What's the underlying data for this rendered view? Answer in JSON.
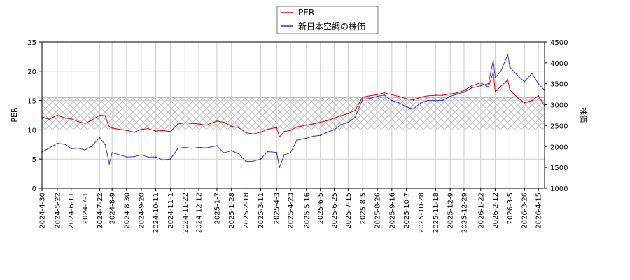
{
  "chart_data": {
    "type": "line",
    "title": "",
    "y_left_label": "PER",
    "y_right_label": "株価",
    "y_left_range": [
      0,
      25
    ],
    "y_left_ticks": [
      0,
      5,
      10,
      15,
      20,
      25
    ],
    "y_right_range": [
      1000,
      4500
    ],
    "y_right_ticks": [
      1000,
      1500,
      2000,
      2500,
      3000,
      3500,
      4000,
      4500
    ],
    "x_range": [
      "2024-04-30",
      "2026-04-24"
    ],
    "x_ticks": [
      "2024-4-30",
      "2024-5-22",
      "2024-6-11",
      "2024-7-1",
      "2024-7-22",
      "2024-8-9",
      "2024-8-30",
      "2024-9-20",
      "2024-10-11",
      "2024-11-1",
      "2024-11-22",
      "2024-12-12",
      "2025-1-7",
      "2025-1-28",
      "2025-2-18",
      "2025-3-11",
      "2025-4-3",
      "2025-4-23",
      "2025-5-16",
      "2025-6-5",
      "2025-6-25",
      "2025-7-15",
      "2025-8-5",
      "2025-8-26",
      "2025-9-16",
      "2025-10-7",
      "2025-10-28",
      "2025-11-18",
      "2025-12-9",
      "2025-12-29",
      "2026-1-22",
      "2026-2-12",
      "2026-3-5",
      "2026-3-26",
      "2026-4-15"
    ],
    "grid": true,
    "legend_position": "top-center",
    "band": {
      "axis": "left",
      "from": 10,
      "to": 15.5,
      "pattern": "crosshatch"
    },
    "series": [
      {
        "name": "PER",
        "axis": "left",
        "color": "#dd0000",
        "x": [
          "2024-04-30",
          "2024-05-10",
          "2024-05-22",
          "2024-06-03",
          "2024-06-11",
          "2024-06-21",
          "2024-07-01",
          "2024-07-10",
          "2024-07-22",
          "2024-07-30",
          "2024-08-05",
          "2024-08-09",
          "2024-08-20",
          "2024-08-30",
          "2024-09-10",
          "2024-09-20",
          "2024-09-30",
          "2024-10-11",
          "2024-10-21",
          "2024-11-01",
          "2024-11-12",
          "2024-11-22",
          "2024-12-02",
          "2024-12-12",
          "2024-12-23",
          "2025-01-07",
          "2025-01-17",
          "2025-01-28",
          "2025-02-07",
          "2025-02-18",
          "2025-02-28",
          "2025-03-11",
          "2025-03-21",
          "2025-04-03",
          "2025-04-07",
          "2025-04-14",
          "2025-04-23",
          "2025-05-02",
          "2025-05-16",
          "2025-05-26",
          "2025-06-05",
          "2025-06-16",
          "2025-06-25",
          "2025-07-04",
          "2025-07-15",
          "2025-07-25",
          "2025-08-05",
          "2025-08-15",
          "2025-08-26",
          "2025-09-05",
          "2025-09-16",
          "2025-09-26",
          "2025-10-07",
          "2025-10-17",
          "2025-10-28",
          "2025-11-07",
          "2025-11-18",
          "2025-11-28",
          "2025-12-09",
          "2025-12-19",
          "2025-12-29",
          "2026-01-09",
          "2026-01-22",
          "2026-02-02",
          "2026-02-09",
          "2026-02-12",
          "2026-02-20",
          "2026-03-02",
          "2026-03-05",
          "2026-03-16",
          "2026-03-26",
          "2026-04-06",
          "2026-04-15",
          "2026-04-24"
        ],
        "y": [
          12.2,
          11.8,
          12.5,
          12.0,
          11.9,
          11.4,
          11.1,
          11.6,
          12.5,
          12.4,
          10.5,
          10.3,
          10.1,
          9.9,
          9.6,
          10.1,
          10.2,
          9.8,
          9.9,
          9.7,
          11.0,
          11.2,
          11.1,
          11.0,
          10.8,
          11.5,
          11.3,
          10.6,
          10.4,
          9.5,
          9.3,
          9.6,
          10.1,
          10.4,
          8.8,
          9.7,
          9.9,
          10.5,
          10.8,
          11.0,
          11.3,
          11.6,
          12.0,
          12.4,
          12.8,
          13.3,
          15.6,
          15.8,
          16.0,
          16.3,
          16.0,
          15.7,
          15.3,
          15.1,
          15.6,
          15.8,
          15.9,
          15.9,
          16.1,
          16.3,
          16.7,
          17.5,
          18.0,
          17.3,
          19.8,
          16.5,
          17.4,
          18.5,
          16.8,
          15.5,
          14.6,
          15.0,
          15.8,
          14.1
        ]
      },
      {
        "name": "新日本空調の株価",
        "axis": "right",
        "color": "#3333cc",
        "x": [
          "2024-04-30",
          "2024-05-10",
          "2024-05-22",
          "2024-06-03",
          "2024-06-11",
          "2024-06-21",
          "2024-07-01",
          "2024-07-10",
          "2024-07-22",
          "2024-07-30",
          "2024-08-05",
          "2024-08-09",
          "2024-08-20",
          "2024-08-30",
          "2024-09-10",
          "2024-09-20",
          "2024-09-30",
          "2024-10-11",
          "2024-10-21",
          "2024-11-01",
          "2024-11-12",
          "2024-11-22",
          "2024-12-02",
          "2024-12-12",
          "2024-12-23",
          "2025-01-07",
          "2025-01-17",
          "2025-01-28",
          "2025-02-07",
          "2025-02-18",
          "2025-02-28",
          "2025-03-11",
          "2025-03-21",
          "2025-04-03",
          "2025-04-07",
          "2025-04-14",
          "2025-04-23",
          "2025-05-02",
          "2025-05-16",
          "2025-05-26",
          "2025-06-05",
          "2025-06-16",
          "2025-06-25",
          "2025-07-04",
          "2025-07-15",
          "2025-07-25",
          "2025-08-05",
          "2025-08-15",
          "2025-08-26",
          "2025-09-05",
          "2025-09-16",
          "2025-09-26",
          "2025-10-07",
          "2025-10-17",
          "2025-10-28",
          "2025-11-07",
          "2025-11-18",
          "2025-11-28",
          "2025-12-09",
          "2025-12-19",
          "2025-12-29",
          "2026-01-09",
          "2026-01-22",
          "2026-02-02",
          "2026-02-09",
          "2026-02-12",
          "2026-02-20",
          "2026-03-02",
          "2026-03-05",
          "2026-03-16",
          "2026-03-26",
          "2026-04-06",
          "2026-04-15",
          "2026-04-24"
        ],
        "y": [
          1870,
          1960,
          2080,
          2050,
          1950,
          1960,
          1920,
          2000,
          2210,
          2050,
          1590,
          1850,
          1800,
          1750,
          1760,
          1800,
          1750,
          1750,
          1680,
          1700,
          1960,
          1980,
          1960,
          1980,
          1970,
          2020,
          1850,
          1900,
          1830,
          1640,
          1650,
          1700,
          1880,
          1860,
          1500,
          1800,
          1850,
          2150,
          2200,
          2250,
          2270,
          2350,
          2400,
          2520,
          2580,
          2700,
          3130,
          3150,
          3200,
          3230,
          3100,
          3050,
          2950,
          2900,
          3050,
          3100,
          3100,
          3100,
          3200,
          3250,
          3300,
          3400,
          3450,
          3500,
          4050,
          3650,
          3800,
          4200,
          3900,
          3700,
          3550,
          3750,
          3500,
          3350
        ]
      }
    ]
  }
}
